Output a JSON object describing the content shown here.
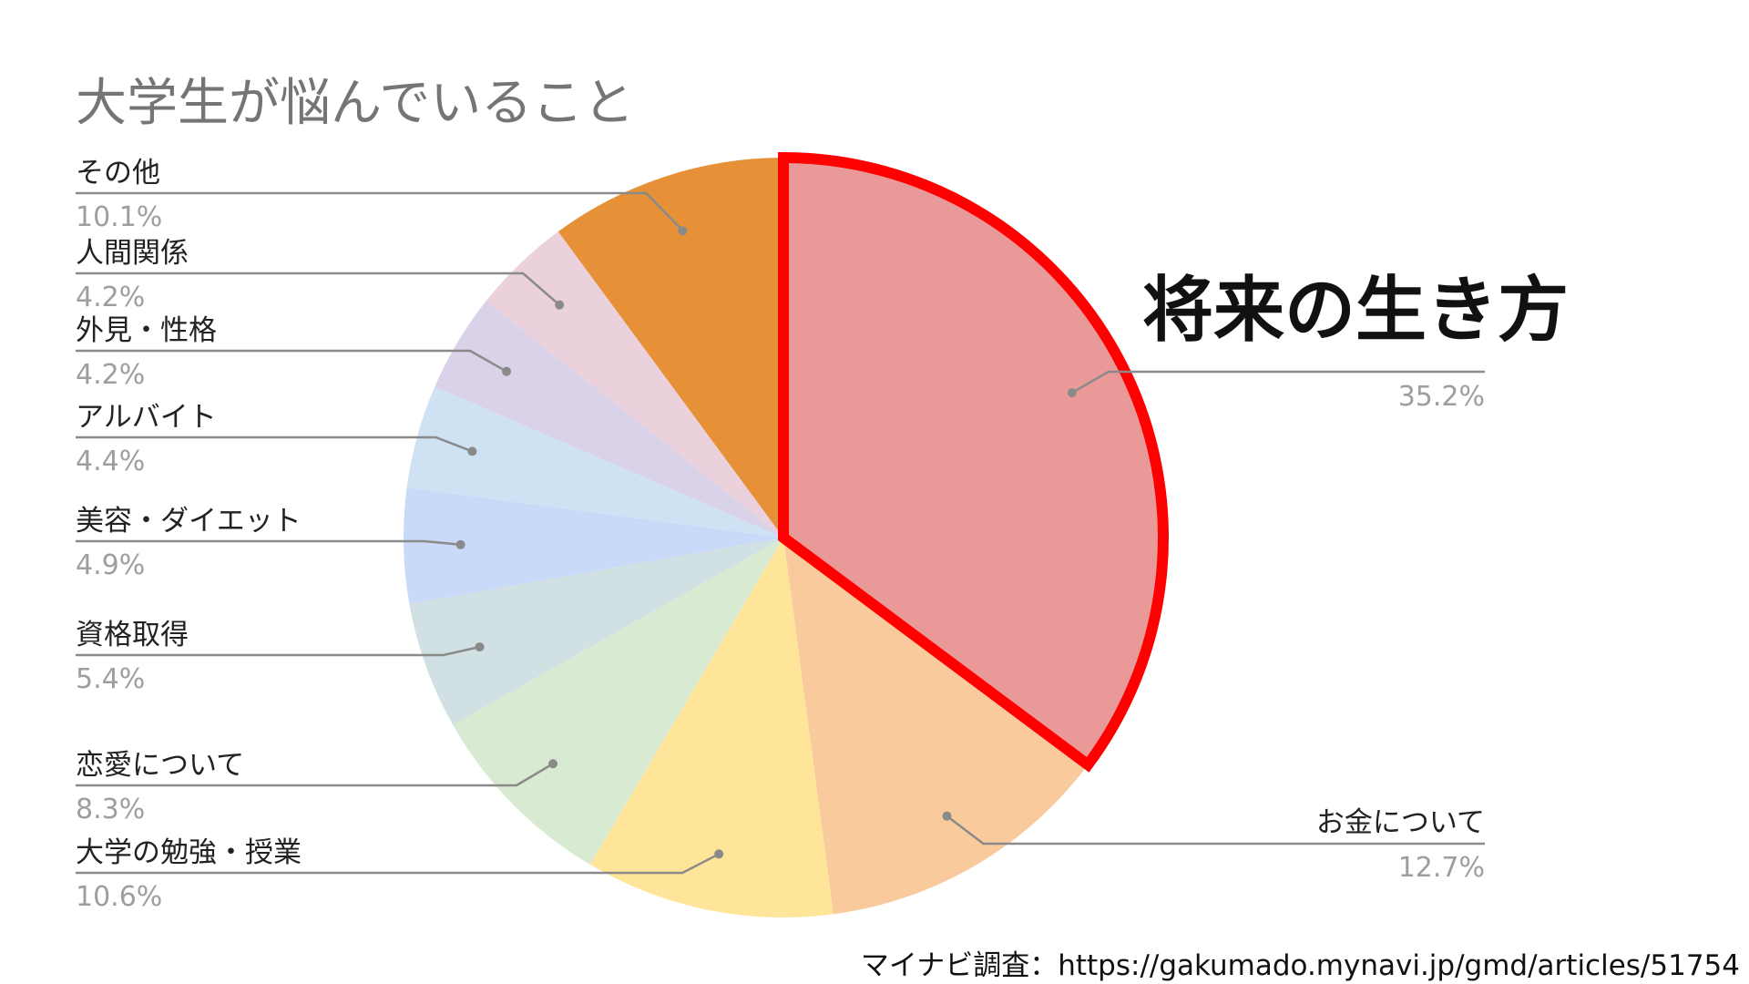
{
  "chart_data": {
    "type": "pie",
    "title": "大学生が悩んでいること",
    "slices": [
      {
        "label": "将来の生き方",
        "value": 35.2,
        "percent_text": "35.2%",
        "color": "#ea9999"
      },
      {
        "label": "お金について",
        "value": 12.7,
        "percent_text": "12.7%",
        "color": "#f9cb9c"
      },
      {
        "label": "大学の勉強・授業",
        "value": 10.6,
        "percent_text": "10.6%",
        "color": "#ffe599"
      },
      {
        "label": "恋愛について",
        "value": 8.3,
        "percent_text": "8.3%",
        "color": "#d9ead3"
      },
      {
        "label": "資格取得",
        "value": 5.4,
        "percent_text": "5.4%",
        "color": "#d0e0e3"
      },
      {
        "label": "美容・ダイエット",
        "value": 4.9,
        "percent_text": "4.9%",
        "color": "#c9daf8"
      },
      {
        "label": "アルバイト",
        "value": 4.4,
        "percent_text": "4.4%",
        "color": "#cfe2f3"
      },
      {
        "label": "外見・性格",
        "value": 4.2,
        "percent_text": "4.2%",
        "color": "#d9d2e9"
      },
      {
        "label": "人間関係",
        "value": 4.2,
        "percent_text": "4.2%",
        "color": "#ead1dc"
      },
      {
        "label": "その他",
        "value": 10.1,
        "percent_text": "10.1%",
        "color": "#e69138"
      }
    ],
    "highlight": {
      "slice": "将来の生き方",
      "outline_color": "#ff0000"
    },
    "legend": "none"
  },
  "callout": {
    "text": "将来の生き方"
  },
  "source": {
    "text": "マイナビ調査：https://gakumado.mynavi.jp/gmd/articles/51754"
  }
}
